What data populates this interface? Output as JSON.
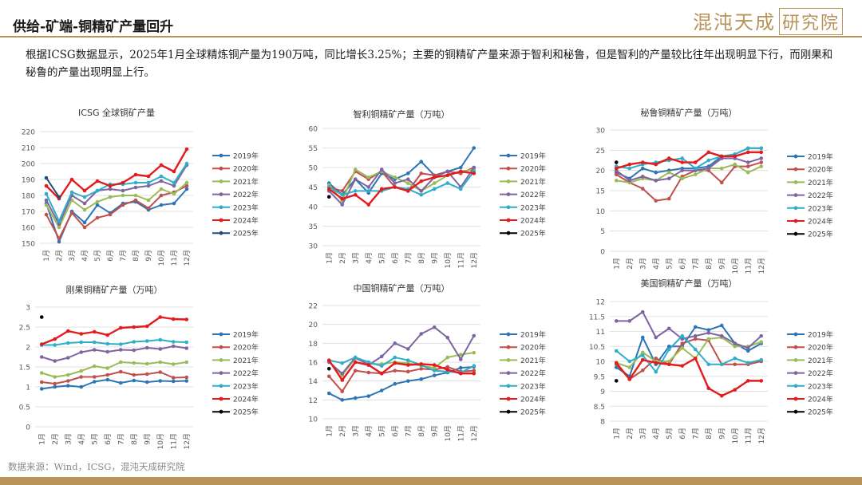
{
  "header": {
    "title": "供给-矿端-铜精矿产量回升",
    "logo_main": "混沌天成",
    "logo_box": "研究院"
  },
  "intro": "根据ICSG数据显示，2025年1月全球精炼铜产量为190万吨，同比增长3.25%；主要的铜精矿产量来源于智利和秘鲁，但是智利的产量较比往年出现明显下行，而刚果和秘鲁的产量出现明显上行。",
  "source": "数据来源：Wind，ICSG，混沌天成研究院",
  "colors": {
    "2019年": "#2e75b6",
    "2020年": "#c0504d",
    "2021年": "#9bbb59",
    "2022年": "#8064a2",
    "2023年": "#2eaec8",
    "2024年": "#e41a1c",
    "2025年": "#000000",
    "2025年_global": "#1f4e79",
    "accent": "#b8935a"
  },
  "chart_data": [
    {
      "type": "line",
      "title": "ICSG 全球铜矿产量",
      "xlabel": "",
      "ylabel": "",
      "categories": [
        "1月",
        "2月",
        "3月",
        "4月",
        "5月",
        "6月",
        "7月",
        "8月",
        "9月",
        "10月",
        "11月",
        "12月"
      ],
      "ylim": [
        150,
        220
      ],
      "yticks": [
        150,
        160,
        170,
        180,
        190,
        200,
        210,
        220
      ],
      "legend": "right",
      "series": [
        {
          "name": "2019年",
          "values": [
            175,
            151,
            170,
            163,
            174,
            169,
            175,
            176,
            171,
            174,
            175,
            184
          ]
        },
        {
          "name": "2020年",
          "values": [
            168,
            153,
            169,
            160,
            166,
            168,
            174,
            177,
            172,
            180,
            182,
            186
          ]
        },
        {
          "name": "2021年",
          "values": [
            174,
            160,
            177,
            171,
            176,
            179,
            180,
            180,
            177,
            184,
            181,
            188
          ]
        },
        {
          "name": "2022年",
          "values": [
            177,
            162,
            180,
            175,
            183,
            184,
            183,
            185,
            186,
            189,
            186,
            199
          ]
        },
        {
          "name": "2023年",
          "values": [
            181,
            164,
            182,
            179,
            183,
            187,
            187,
            188,
            188,
            192,
            188,
            200
          ]
        },
        {
          "name": "2024年",
          "values": [
            186,
            178,
            190,
            183,
            189,
            186,
            188,
            193,
            192,
            199,
            195,
            209
          ]
        },
        {
          "name": "2025年",
          "values": [
            191,
            179,
            null,
            null,
            null,
            null,
            null,
            null,
            null,
            null,
            null,
            null
          ]
        }
      ]
    },
    {
      "type": "line",
      "title": "智利铜精矿产量（万吨）",
      "xlabel": "",
      "ylabel": "",
      "categories": [
        "1月",
        "2月",
        "3月",
        "4月",
        "5月",
        "6月",
        "7月",
        "8月",
        "9月",
        "10月",
        "11月",
        "12月"
      ],
      "ylim": [
        30,
        60
      ],
      "yticks": [
        30,
        35,
        40,
        45,
        50,
        55,
        60
      ],
      "legend": "right",
      "series": [
        {
          "name": "2019年",
          "values": [
            46,
            43,
            47,
            43.5,
            48.5,
            47,
            48.5,
            51.5,
            48,
            49,
            50,
            55
          ]
        },
        {
          "name": "2020年",
          "values": [
            45,
            44,
            49,
            47,
            49,
            45,
            44,
            48.5,
            48,
            49,
            48.5,
            50
          ]
        },
        {
          "name": "2021年",
          "values": [
            45.5,
            41.5,
            49.5,
            47.5,
            49,
            47.5,
            46,
            44,
            46,
            48,
            49,
            49.5
          ]
        },
        {
          "name": "2022年",
          "values": [
            44,
            40.5,
            47,
            45,
            49.5,
            46,
            47,
            44,
            47.5,
            49,
            45,
            50
          ]
        },
        {
          "name": "2023年",
          "values": [
            45,
            43,
            44,
            44,
            44,
            45,
            44.5,
            43,
            44.5,
            46,
            44.5,
            49
          ]
        },
        {
          "name": "2024年",
          "values": [
            44.5,
            42,
            43,
            40.5,
            44.5,
            45,
            44,
            46.5,
            47.5,
            48,
            49,
            48.5
          ]
        },
        {
          "name": "2025年",
          "values": [
            42.5,
            null,
            null,
            null,
            null,
            null,
            null,
            null,
            null,
            null,
            null,
            null
          ]
        }
      ]
    },
    {
      "type": "line",
      "title": "秘鲁铜精矿产量（万吨）",
      "xlabel": "",
      "ylabel": "",
      "categories": [
        "1月",
        "2月",
        "3月",
        "4月",
        "5月",
        "6月",
        "7月",
        "8月",
        "9月",
        "10月",
        "11月",
        "12月"
      ],
      "ylim": [
        0,
        30
      ],
      "yticks": [
        0,
        5,
        10,
        15,
        20,
        25,
        30
      ],
      "legend": "right",
      "series": [
        {
          "name": "2019年",
          "values": [
            19.5,
            18,
            20.5,
            19.5,
            20,
            20.5,
            20.5,
            21,
            23.5,
            24,
            25.5,
            25.5
          ]
        },
        {
          "name": "2020年",
          "values": [
            19,
            17,
            15.5,
            12.5,
            13,
            18.5,
            20,
            20,
            17,
            21,
            21,
            22
          ]
        },
        {
          "name": "2021年",
          "values": [
            17.5,
            17,
            18,
            17.5,
            19.5,
            18,
            19,
            20.5,
            20.5,
            21.5,
            19.5,
            21
          ]
        },
        {
          "name": "2022年",
          "values": [
            20,
            17.5,
            18.5,
            17.5,
            18,
            20,
            20,
            20.5,
            23,
            23,
            22,
            23
          ]
        },
        {
          "name": "2023年",
          "values": [
            21,
            20.5,
            21.5,
            22,
            22.5,
            23,
            20.5,
            22.5,
            23.5,
            24,
            25.5,
            25.5
          ]
        },
        {
          "name": "2024年",
          "values": [
            20.5,
            21.5,
            22,
            21.5,
            23,
            22,
            22,
            24.5,
            23.5,
            23.5,
            24.5,
            24.5
          ]
        },
        {
          "name": "2025年",
          "values": [
            22,
            null,
            null,
            null,
            null,
            null,
            null,
            null,
            null,
            null,
            null,
            null
          ]
        }
      ]
    },
    {
      "type": "line",
      "title": "刚果铜精矿产量（万吨）",
      "xlabel": "",
      "ylabel": "",
      "categories": [
        "1月",
        "2月",
        "3月",
        "4月",
        "5月",
        "6月",
        "7月",
        "8月",
        "9月",
        "10月",
        "11月",
        "12月"
      ],
      "ylim": [
        0,
        3
      ],
      "yticks": [
        0,
        0.5,
        1,
        1.5,
        2,
        2.5,
        3
      ],
      "yticklabels": [
        "0",
        "0.5",
        "1",
        "1.5",
        "2",
        "2.5",
        "3"
      ],
      "legend": "right",
      "series": [
        {
          "name": "2019年",
          "values": [
            0.95,
            1.0,
            1.03,
            1.0,
            1.13,
            1.18,
            1.1,
            1.16,
            1.12,
            1.15,
            1.14,
            1.15
          ]
        },
        {
          "name": "2020年",
          "values": [
            1.12,
            1.08,
            1.15,
            1.25,
            1.25,
            1.3,
            1.38,
            1.3,
            1.32,
            1.37,
            1.23,
            1.24
          ]
        },
        {
          "name": "2021年",
          "values": [
            1.35,
            1.25,
            1.3,
            1.4,
            1.52,
            1.47,
            1.62,
            1.6,
            1.58,
            1.62,
            1.57,
            1.62
          ]
        },
        {
          "name": "2022年",
          "values": [
            1.75,
            1.65,
            1.73,
            1.87,
            1.93,
            1.88,
            1.93,
            1.92,
            1.98,
            1.95,
            2.02,
            1.97
          ]
        },
        {
          "name": "2023年",
          "values": [
            2.05,
            2.05,
            2.1,
            2.12,
            2.12,
            2.08,
            2.07,
            2.13,
            2.15,
            2.18,
            2.13,
            2.12
          ]
        },
        {
          "name": "2024年",
          "values": [
            2.07,
            2.2,
            2.4,
            2.33,
            2.38,
            2.3,
            2.48,
            2.5,
            2.52,
            2.75,
            2.7,
            2.69
          ]
        },
        {
          "name": "2025年",
          "values": [
            2.75,
            null,
            null,
            null,
            null,
            null,
            null,
            null,
            null,
            null,
            null,
            null
          ]
        }
      ]
    },
    {
      "type": "line",
      "title": "中国铜精矿产量（万吨）",
      "xlabel": "",
      "ylabel": "",
      "categories": [
        "1月",
        "2月",
        "3月",
        "4月",
        "5月",
        "6月",
        "7月",
        "8月",
        "9月",
        "10月",
        "11月",
        "12月"
      ],
      "ylim": [
        10,
        22
      ],
      "yticks": [
        10,
        12,
        14,
        16,
        18,
        20,
        22
      ],
      "legend": "right",
      "series": [
        {
          "name": "2019年",
          "values": [
            12.7,
            12.0,
            12.2,
            12.4,
            13.0,
            13.7,
            14.0,
            14.2,
            14.6,
            14.9,
            15.4,
            15.5
          ]
        },
        {
          "name": "2020年",
          "values": [
            14.5,
            12.9,
            15.1,
            14.9,
            14.8,
            15.1,
            15.0,
            15.3,
            15.2,
            15.5,
            15.0,
            15.1
          ]
        },
        {
          "name": "2021年",
          "values": [
            16.1,
            14.6,
            16.4,
            15.8,
            15.8,
            16.0,
            15.9,
            15.6,
            15.4,
            16.5,
            16.8,
            17.0
          ]
        },
        {
          "name": "2022年",
          "values": [
            16.0,
            14.8,
            16.5,
            15.7,
            16.6,
            18.0,
            17.4,
            19.0,
            19.7,
            18.6,
            16.3,
            18.8
          ]
        },
        {
          "name": "2023年",
          "values": [
            16.2,
            15.9,
            16.5,
            16.0,
            15.6,
            16.5,
            16.2,
            15.7,
            15.1,
            15.0,
            14.9,
            15.6
          ]
        },
        {
          "name": "2024年",
          "values": [
            16.2,
            14.1,
            16.0,
            15.7,
            14.8,
            15.9,
            15.7,
            15.8,
            15.7,
            15.2,
            14.8,
            14.8
          ]
        },
        {
          "name": "2025年",
          "values": [
            15.3,
            null,
            null,
            null,
            null,
            null,
            null,
            null,
            null,
            null,
            null,
            null
          ]
        }
      ]
    },
    {
      "type": "line",
      "title": "美国铜精矿产量（万吨）",
      "xlabel": "",
      "ylabel": "",
      "categories": [
        "1月",
        "2月",
        "3月",
        "4月",
        "5月",
        "6月",
        "7月",
        "8月",
        "9月",
        "10月",
        "11月",
        "12月"
      ],
      "ylim": [
        8,
        12
      ],
      "yticks": [
        8,
        8.5,
        9,
        9.5,
        10,
        10.5,
        11,
        11.5,
        12
      ],
      "yticklabels": [
        "8",
        "8.5",
        "9",
        "9.5",
        "10",
        "10.5",
        "11",
        "11.5",
        "12"
      ],
      "legend": "right",
      "series": [
        {
          "name": "2019年",
          "values": [
            9.8,
            9.5,
            10.8,
            9.9,
            10.5,
            10.5,
            11.15,
            11.05,
            11.2,
            10.6,
            10.35,
            10.6
          ]
        },
        {
          "name": "2020年",
          "values": [
            9.9,
            9.4,
            9.7,
            10.1,
            9.9,
            10.6,
            10.75,
            10.7,
            9.9,
            9.9,
            9.9,
            10.0
          ]
        },
        {
          "name": "2021年",
          "values": [
            9.95,
            9.8,
            10.3,
            10.0,
            10.0,
            10.45,
            10.1,
            10.75,
            10.8,
            10.5,
            10.5,
            10.65
          ]
        },
        {
          "name": "2022年",
          "values": [
            11.35,
            11.35,
            11.65,
            10.8,
            11.1,
            10.75,
            10.85,
            10.95,
            10.85,
            10.6,
            10.45,
            10.85
          ]
        },
        {
          "name": "2023年",
          "values": [
            10.35,
            10.0,
            10.2,
            9.65,
            10.4,
            10.85,
            10.4,
            9.9,
            9.9,
            10.1,
            9.95,
            10.05
          ]
        },
        {
          "name": "2024年",
          "values": [
            9.95,
            9.4,
            10.05,
            9.95,
            9.9,
            9.85,
            10.1,
            9.1,
            8.85,
            9.05,
            9.35,
            9.35
          ]
        },
        {
          "name": "2025年",
          "values": [
            9.35,
            null,
            null,
            null,
            null,
            null,
            null,
            null,
            null,
            null,
            null,
            null
          ]
        }
      ]
    }
  ]
}
